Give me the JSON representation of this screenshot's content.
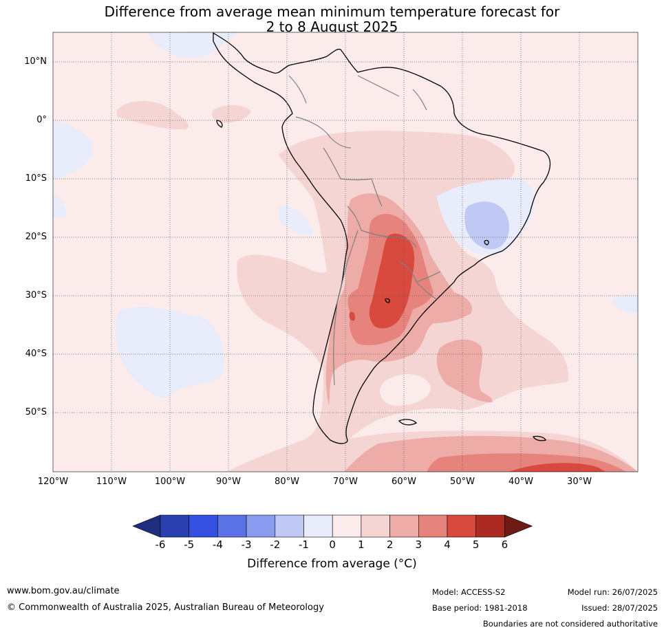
{
  "title_line1": "Difference from average mean minimum temperature forecast for",
  "title_line2": "2 to 8 August 2025",
  "lat_labels": [
    "10°N",
    "0°",
    "10°S",
    "20°S",
    "30°S",
    "40°S",
    "50°S"
  ],
  "lon_labels": [
    "120°W",
    "110°W",
    "100°W",
    "90°W",
    "80°W",
    "70°W",
    "60°W",
    "50°W",
    "40°W",
    "30°W"
  ],
  "colorbar": {
    "ticks": [
      "-6",
      "-5",
      "-4",
      "-3",
      "-2",
      "-1",
      "0",
      "1",
      "2",
      "3",
      "4",
      "5",
      "6"
    ],
    "colors": [
      "#1f2e80",
      "#2a3fb0",
      "#3350e0",
      "#5b72e6",
      "#8a9cef",
      "#c0c8f4",
      "#e8ecfb",
      "#fbeceb",
      "#f5d5d3",
      "#edaca8",
      "#e5837c",
      "#d94a3e",
      "#ab2a21",
      "#6e1a15"
    ],
    "label": "Difference from average (°C)"
  },
  "footer": {
    "website": "www.bom.gov.au/climate",
    "copyright": "© Commonwealth of Australia 2025, Australian Bureau of Meteorology",
    "model": "Model: ACCESS-S2",
    "base_period": "Base period: 1981-2018",
    "model_run": "Model run: 26/07/2025",
    "issued": "Issued: 28/07/2025",
    "disclaimer": "Boundaries are not considered authoritative"
  }
}
